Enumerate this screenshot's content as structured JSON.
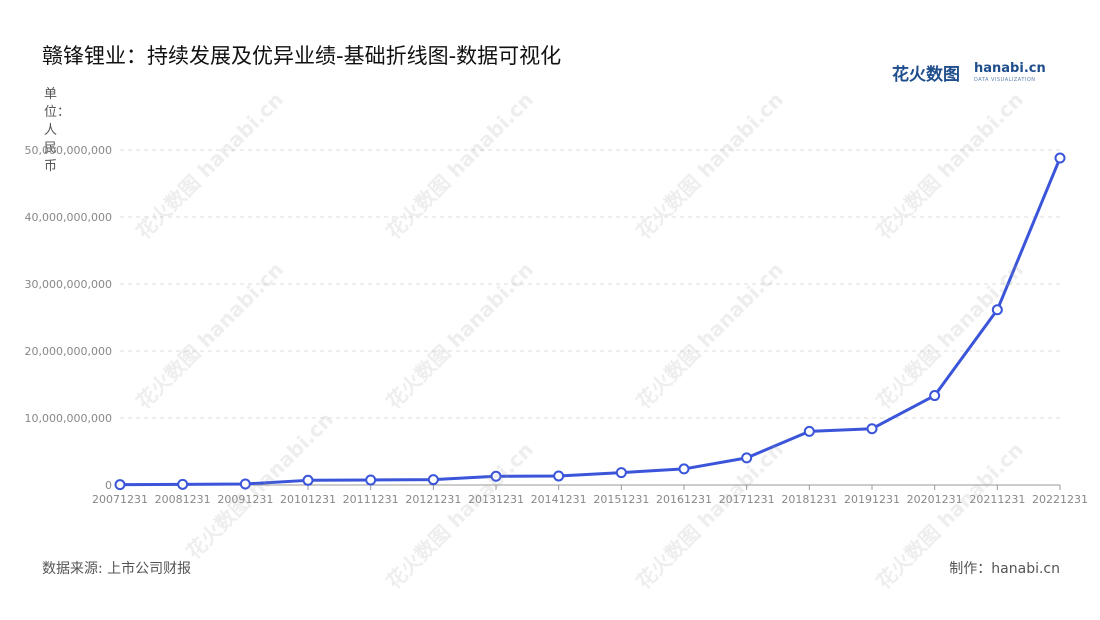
{
  "title": "赣锋锂业：持续发展及优异业绩-基础折线图-数据可视化",
  "logo": {
    "cn": "花火数图",
    "en": "hanabi.cn",
    "sub": "DATA VISUALIZATION"
  },
  "unit_label": "单位：人民币",
  "source": "数据来源: 上市公司财报",
  "credit": "制作：hanabi.cn",
  "watermark_text": "花火数图 hanabi.cn",
  "colors": {
    "line": "#3a55d9",
    "marker_fill": "#ffffff",
    "grid": "#dddddd",
    "axis": "#999999",
    "tick_text": "#888888"
  },
  "chart_data": {
    "type": "line",
    "title": "赣锋锂业：持续发展及优异业绩-基础折线图-数据可视化",
    "xlabel": "",
    "ylabel": "单位：人民币",
    "categories": [
      "20071231",
      "20081231",
      "20091231",
      "20101231",
      "20111231",
      "20121231",
      "20131231",
      "20141231",
      "20151231",
      "20161231",
      "20171231",
      "20181231",
      "20191231",
      "20201231",
      "20211231",
      "20221231"
    ],
    "series": [
      {
        "values": [
          50000000,
          100000000,
          150000000,
          700000000,
          750000000,
          800000000,
          1300000000,
          1350000000,
          1850000000,
          2400000000,
          4050000000,
          8000000000,
          8400000000,
          13350000000,
          26150000000,
          48800000000
        ]
      }
    ],
    "ylim": [
      0,
      50000000000
    ],
    "yticks": [
      0,
      10000000000,
      20000000000,
      30000000000,
      40000000000,
      50000000000
    ],
    "ytick_labels": [
      "0",
      "10,000,000,000",
      "20,000,000,000",
      "30,000,000,000",
      "40,000,000,000",
      "50,000,000,000"
    ],
    "grid": true,
    "legend": "none"
  }
}
